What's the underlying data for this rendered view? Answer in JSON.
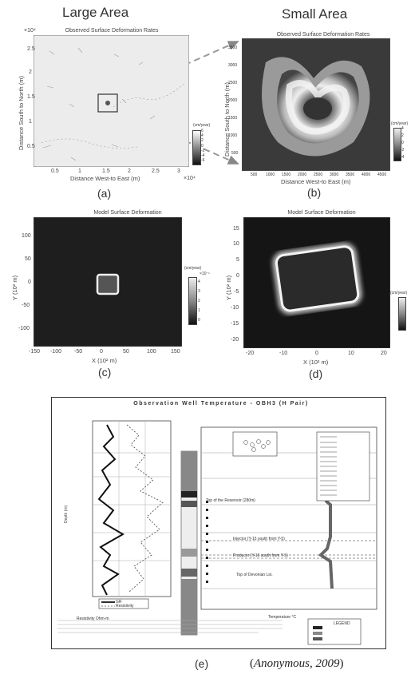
{
  "headers": {
    "large": "Large Area",
    "small": "Small Area"
  },
  "panel_a": {
    "title": "Observed Surface Deformation Rates",
    "exp": "×10⁴",
    "yticks": [
      "2.5",
      "2",
      "1.5",
      "1",
      "0.5"
    ],
    "xticks": [
      "0.5",
      "1",
      "1.5",
      "2",
      "2.5",
      "3"
    ],
    "xexp": "×10⁴",
    "xlabel": "Distance West-to East (m)",
    "ylabel": "Distance South to North (m)",
    "cb_label": "(cm/year)",
    "cb_ticks": [
      "6",
      "4",
      "2",
      "0",
      "-2",
      "-4",
      "-6"
    ],
    "label": "(a)"
  },
  "panel_b": {
    "title": "Observed Surface Deformation Rates",
    "yticks": [
      "3500",
      "3000",
      "2500",
      "2000",
      "1500",
      "1000",
      "500"
    ],
    "xticks": [
      "500",
      "1000",
      "1500",
      "2000",
      "2500",
      "3000",
      "3500",
      "4000",
      "4500"
    ],
    "xlabel": "Distance West-to East (m)",
    "ylabel": "Distance South to North (m)",
    "cb_label": "(cm/year)",
    "cb_ticks": [
      "4",
      "2",
      "0",
      "-2",
      "-4"
    ],
    "label": "(b)"
  },
  "panel_c": {
    "title": "Model Surface Deformation",
    "yticks": [
      "100",
      "50",
      "0",
      "-50",
      "-100"
    ],
    "xticks": [
      "-150",
      "-100",
      "-50",
      "0",
      "50",
      "100",
      "150"
    ],
    "xlabel": "X (10² m)",
    "ylabel": "Y (10² m)",
    "cb_label": "(cm/year)",
    "cb_exp": "×10⁻¹",
    "cb_ticks": [
      "4",
      "3",
      "2",
      "1",
      "0"
    ],
    "label": "(c)"
  },
  "panel_d": {
    "title": "Model Surface Deformation",
    "yticks": [
      "15",
      "10",
      "5",
      "0",
      "-5",
      "-10",
      "-15",
      "-20"
    ],
    "xticks": [
      "-20",
      "-10",
      "0",
      "10",
      "20"
    ],
    "xlabel": "X (10² m)",
    "ylabel": "Y (10² m)",
    "cb_label": "(cm/year)",
    "label": "(d)"
  },
  "panel_e": {
    "title": "Observation Well Temperature - OBH3 (H Pair)",
    "left_xlabel": "Resistivity Ohm-m",
    "left_ylabel": "Depth (m)",
    "right_xlabel": "Temperature °C",
    "ann_top": "Top of the Reservoir (280m)",
    "ann_inj": "Injector (Y-15 south from Y-5)",
    "ann_prod": "Producer (Y-16 south from Y-5)",
    "ann_bottom": "Top of Devonian Lst.",
    "legend_res": "Resistivity",
    "legend_gr": "GR",
    "legend_lith": "LEGEND",
    "label": "(e)"
  },
  "citation": "Anonymous, 2009"
}
